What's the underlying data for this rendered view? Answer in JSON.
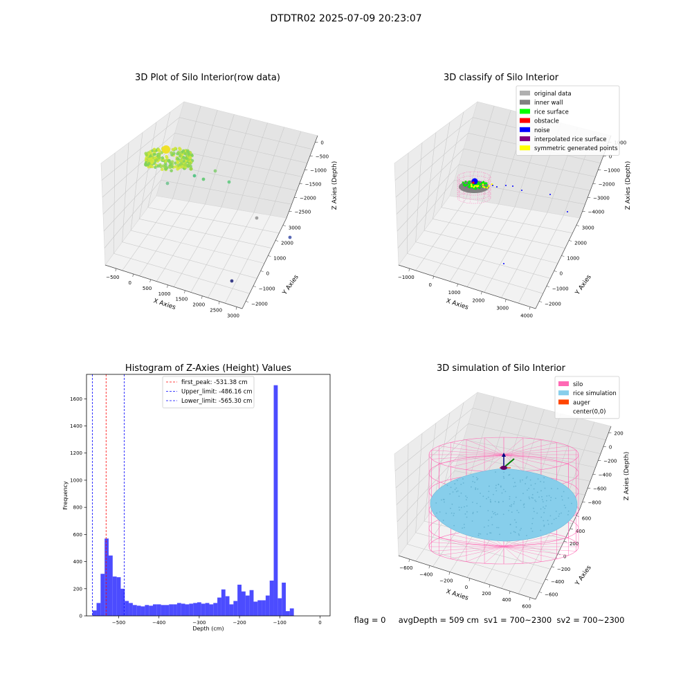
{
  "suptitle": "DTDTR02 2025-07-09 20:23:07",
  "status_line": "flag = 0     avgDepth = 509 cm  sv1 = 700~2300  sv2 = 700~2300",
  "chart_data": [
    {
      "type": "scatter3d",
      "title": "3D Plot of Silo Interior(row data)",
      "xlabel": "X Axies",
      "ylabel": "Y Axies",
      "zlabel": "Z Axies (Depth)",
      "x_ticks": [
        "−500",
        "0",
        "500",
        "1000",
        "1500",
        "2000",
        "2500",
        "3000"
      ],
      "y_ticks": [
        "−2000",
        "−1000",
        "0",
        "1000",
        "2000",
        "3000"
      ],
      "z_ticks": [
        "0",
        "−500",
        "−1000",
        "−1500",
        "−2000",
        "−2500"
      ],
      "xlim": [
        -700,
        3200
      ],
      "ylim": [
        -2400,
        3400
      ],
      "zlim": [
        -2700,
        100
      ],
      "colormap": "viridis",
      "grid": true,
      "points_summary": "dense ring-shaped cluster of rice-surface points near x≈-400..0, z≈-500..-600; sparse outliers down to z≈-2600"
    },
    {
      "type": "scatter3d",
      "title": "3D classify of Silo Interior",
      "xlabel": "X Axies",
      "ylabel": "Y Axies",
      "zlabel": "Z Axies (Depth)",
      "x_ticks": [
        "−1000",
        "0",
        "1000",
        "2000",
        "3000",
        "4000"
      ],
      "y_ticks": [
        "−2000",
        "−1000",
        "0",
        "1000",
        "2000",
        "3000"
      ],
      "z_ticks": [
        "1000",
        "0",
        "−1000",
        "−2000",
        "−3000",
        "−4000"
      ],
      "xlim": [
        -1500,
        4200
      ],
      "ylim": [
        -2400,
        3400
      ],
      "zlim": [
        -4200,
        1200
      ],
      "grid": true,
      "legend_position": "top-right",
      "legend": [
        {
          "label": "original data",
          "color": "#b0b0b0"
        },
        {
          "label": "inner wall",
          "color": "#808080"
        },
        {
          "label": "rice surface",
          "color": "#00ff00"
        },
        {
          "label": "obstacle",
          "color": "#ff0000"
        },
        {
          "label": "noise",
          "color": "#0000ff"
        },
        {
          "label": "interpolated rice surface",
          "color": "#800080"
        },
        {
          "label": "symmetric generated points",
          "color": "#ffff00"
        }
      ]
    },
    {
      "type": "bar",
      "title": "Histogram of Z-Axies (Height) Values",
      "xlabel": "Depth (cm)",
      "ylabel": "Frequency",
      "bin_width": 10,
      "xlim": [
        -580,
        25
      ],
      "ylim": [
        0,
        1780
      ],
      "x_ticks": [
        -500,
        -400,
        -300,
        -200,
        -100,
        0
      ],
      "x_tick_labels": [
        "−500",
        "−400",
        "−300",
        "−200",
        "−100",
        "0"
      ],
      "y_ticks": [
        0,
        200,
        400,
        600,
        800,
        1000,
        1200,
        1400,
        1600
      ],
      "bar_color": "#4c4cff",
      "legend_position": "top-center",
      "bins": [
        {
          "x0": -565,
          "value": 40
        },
        {
          "x0": -555,
          "value": 95
        },
        {
          "x0": -545,
          "value": 310
        },
        {
          "x0": -535,
          "value": 570
        },
        {
          "x0": -525,
          "value": 445
        },
        {
          "x0": -515,
          "value": 290
        },
        {
          "x0": -505,
          "value": 285
        },
        {
          "x0": -495,
          "value": 200
        },
        {
          "x0": -485,
          "value": 110
        },
        {
          "x0": -475,
          "value": 95
        },
        {
          "x0": -465,
          "value": 80
        },
        {
          "x0": -455,
          "value": 75
        },
        {
          "x0": -445,
          "value": 70
        },
        {
          "x0": -435,
          "value": 80
        },
        {
          "x0": -425,
          "value": 75
        },
        {
          "x0": -415,
          "value": 85
        },
        {
          "x0": -405,
          "value": 85
        },
        {
          "x0": -395,
          "value": 80
        },
        {
          "x0": -385,
          "value": 80
        },
        {
          "x0": -375,
          "value": 85
        },
        {
          "x0": -365,
          "value": 85
        },
        {
          "x0": -355,
          "value": 95
        },
        {
          "x0": -345,
          "value": 90
        },
        {
          "x0": -335,
          "value": 85
        },
        {
          "x0": -325,
          "value": 90
        },
        {
          "x0": -315,
          "value": 95
        },
        {
          "x0": -305,
          "value": 100
        },
        {
          "x0": -295,
          "value": 90
        },
        {
          "x0": -285,
          "value": 95
        },
        {
          "x0": -275,
          "value": 85
        },
        {
          "x0": -265,
          "value": 95
        },
        {
          "x0": -255,
          "value": 135
        },
        {
          "x0": -245,
          "value": 195
        },
        {
          "x0": -235,
          "value": 145
        },
        {
          "x0": -225,
          "value": 85
        },
        {
          "x0": -215,
          "value": 110
        },
        {
          "x0": -205,
          "value": 230
        },
        {
          "x0": -195,
          "value": 180
        },
        {
          "x0": -185,
          "value": 150
        },
        {
          "x0": -175,
          "value": 190
        },
        {
          "x0": -165,
          "value": 105
        },
        {
          "x0": -155,
          "value": 115
        },
        {
          "x0": -145,
          "value": 115
        },
        {
          "x0": -135,
          "value": 150
        },
        {
          "x0": -125,
          "value": 260
        },
        {
          "x0": -115,
          "value": 1700
        },
        {
          "x0": -105,
          "value": 130
        },
        {
          "x0": -95,
          "value": 245
        },
        {
          "x0": -85,
          "value": 35
        },
        {
          "x0": -75,
          "value": 55
        }
      ],
      "vlines": [
        {
          "x": -531.38,
          "color": "#ff0000",
          "label": "first_peak: -531.38 cm"
        },
        {
          "x": -486.16,
          "color": "#0000ff",
          "label": "Upper_limit: -486.16 cm"
        },
        {
          "x": -565.3,
          "color": "#0000ff",
          "label": "Lower_limit: -565.30 cm"
        }
      ]
    },
    {
      "type": "surface3d",
      "title": "3D simulation of Silo Interior",
      "xlabel": "X Axies",
      "ylabel": "Y Axies",
      "zlabel": "Z Axies (Depth)",
      "x_ticks": [
        "−600",
        "−400",
        "−200",
        "0",
        "200",
        "400",
        "600"
      ],
      "y_ticks": [
        "−600",
        "−400",
        "−200",
        "0",
        "200",
        "400",
        "600"
      ],
      "z_ticks": [
        "200",
        "0",
        "−200",
        "−400",
        "−600",
        "−800"
      ],
      "xlim": [
        -700,
        700
      ],
      "ylim": [
        -700,
        700
      ],
      "zlim": [
        -950,
        300
      ],
      "grid": true,
      "legend_position": "top-right",
      "legend": [
        {
          "label": "silo",
          "color": "#ff69b4"
        },
        {
          "label": "rice simulation",
          "color": "#87ceeb"
        },
        {
          "label": "auger",
          "color": "#ff4500"
        },
        {
          "label": "center(0,0)",
          "color": "#ffffff"
        }
      ]
    }
  ]
}
